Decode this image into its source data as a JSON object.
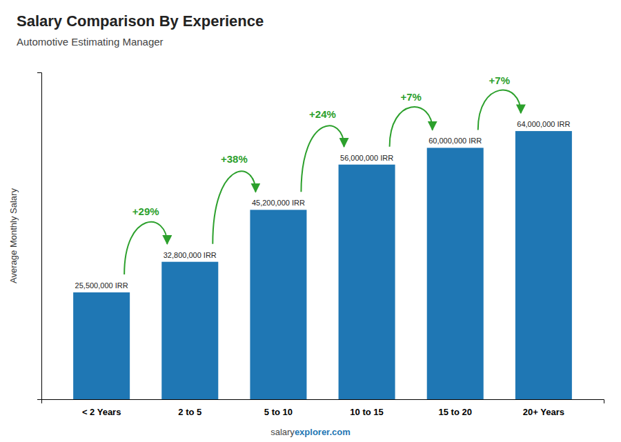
{
  "chart_data": {
    "type": "bar",
    "title": "Salary Comparison By Experience",
    "subtitle": "Automotive Estimating Manager",
    "y_label": "Average Monthly Salary",
    "categories": [
      "< 2 Years",
      "2 to 5",
      "5 to 10",
      "10 to 15",
      "15 to 20",
      "20+ Years"
    ],
    "values": [
      25500000,
      32800000,
      45200000,
      56000000,
      60000000,
      64000000
    ],
    "value_labels": [
      "25,500,000 IRR",
      "32,800,000 IRR",
      "45,200,000 IRR",
      "56,000,000 IRR",
      "60,000,000 IRR",
      "64,000,000 IRR"
    ],
    "data_labels": true,
    "annotations": [
      "+29%",
      "+38%",
      "+24%",
      "+7%",
      "+7%"
    ],
    "footer": [
      "salary",
      "explorer.com"
    ],
    "ylim": [
      0,
      78000000
    ],
    "tick_labels": "x"
  }
}
